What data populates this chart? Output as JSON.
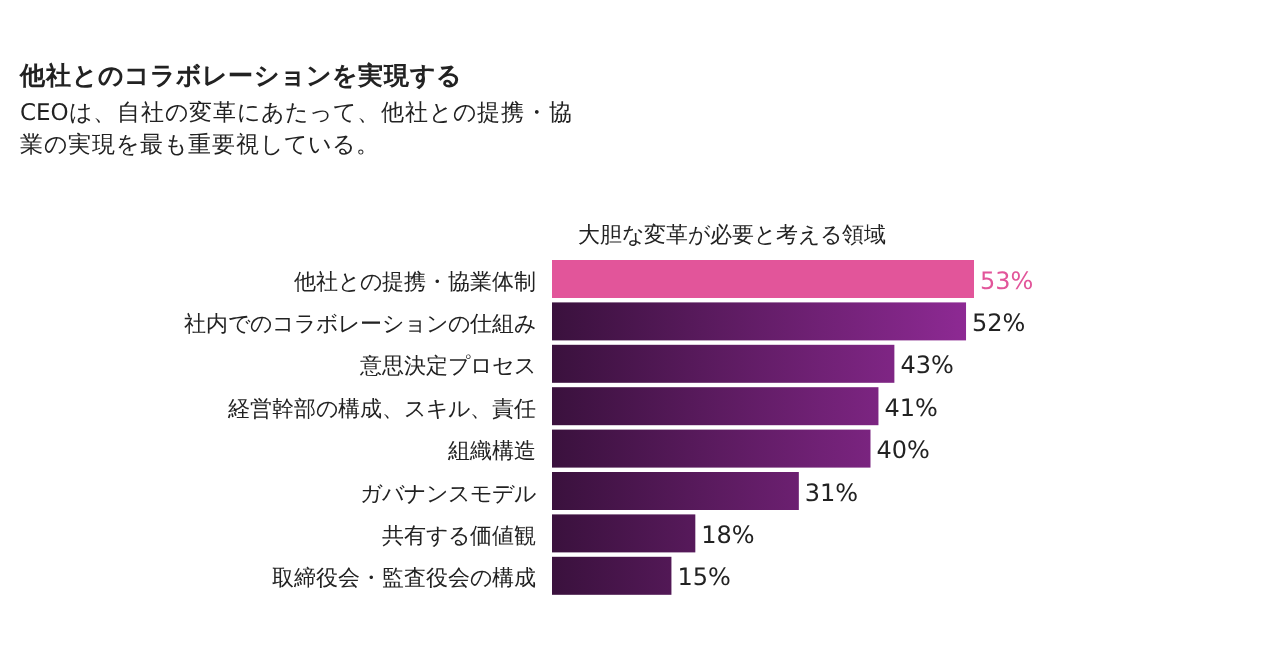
{
  "chart_data": {
    "type": "bar",
    "orientation": "horizontal",
    "title": "他社とのコラボレーションを実現する",
    "subtitle": "CEOは、自社の変革にあたって、他社との提携・協業の実現を最も重要視している。",
    "xlabel": "大胆な変革が必要と考える領域",
    "categories": [
      "他社との提携・協業体制",
      "社内でのコラボレーションの仕組み",
      "意思決定プロセス",
      "経営幹部の構成、スキル、責任",
      "組織構造",
      "ガバナンスモデル",
      "共有する価値観",
      "取締役会・監査役会の構成"
    ],
    "values": [
      53,
      52,
      43,
      41,
      40,
      31,
      18,
      15
    ],
    "value_labels": [
      "53%",
      "52%",
      "43%",
      "41%",
      "40%",
      "31%",
      "18%",
      "15%"
    ],
    "colors": [
      "#e2559a",
      "#6a1f6e",
      "#6a1f6e",
      "#6a1f6e",
      "#6a1f6e",
      "#6a1f6e",
      "#6a1f6e",
      "#6a1f6e"
    ]
  }
}
